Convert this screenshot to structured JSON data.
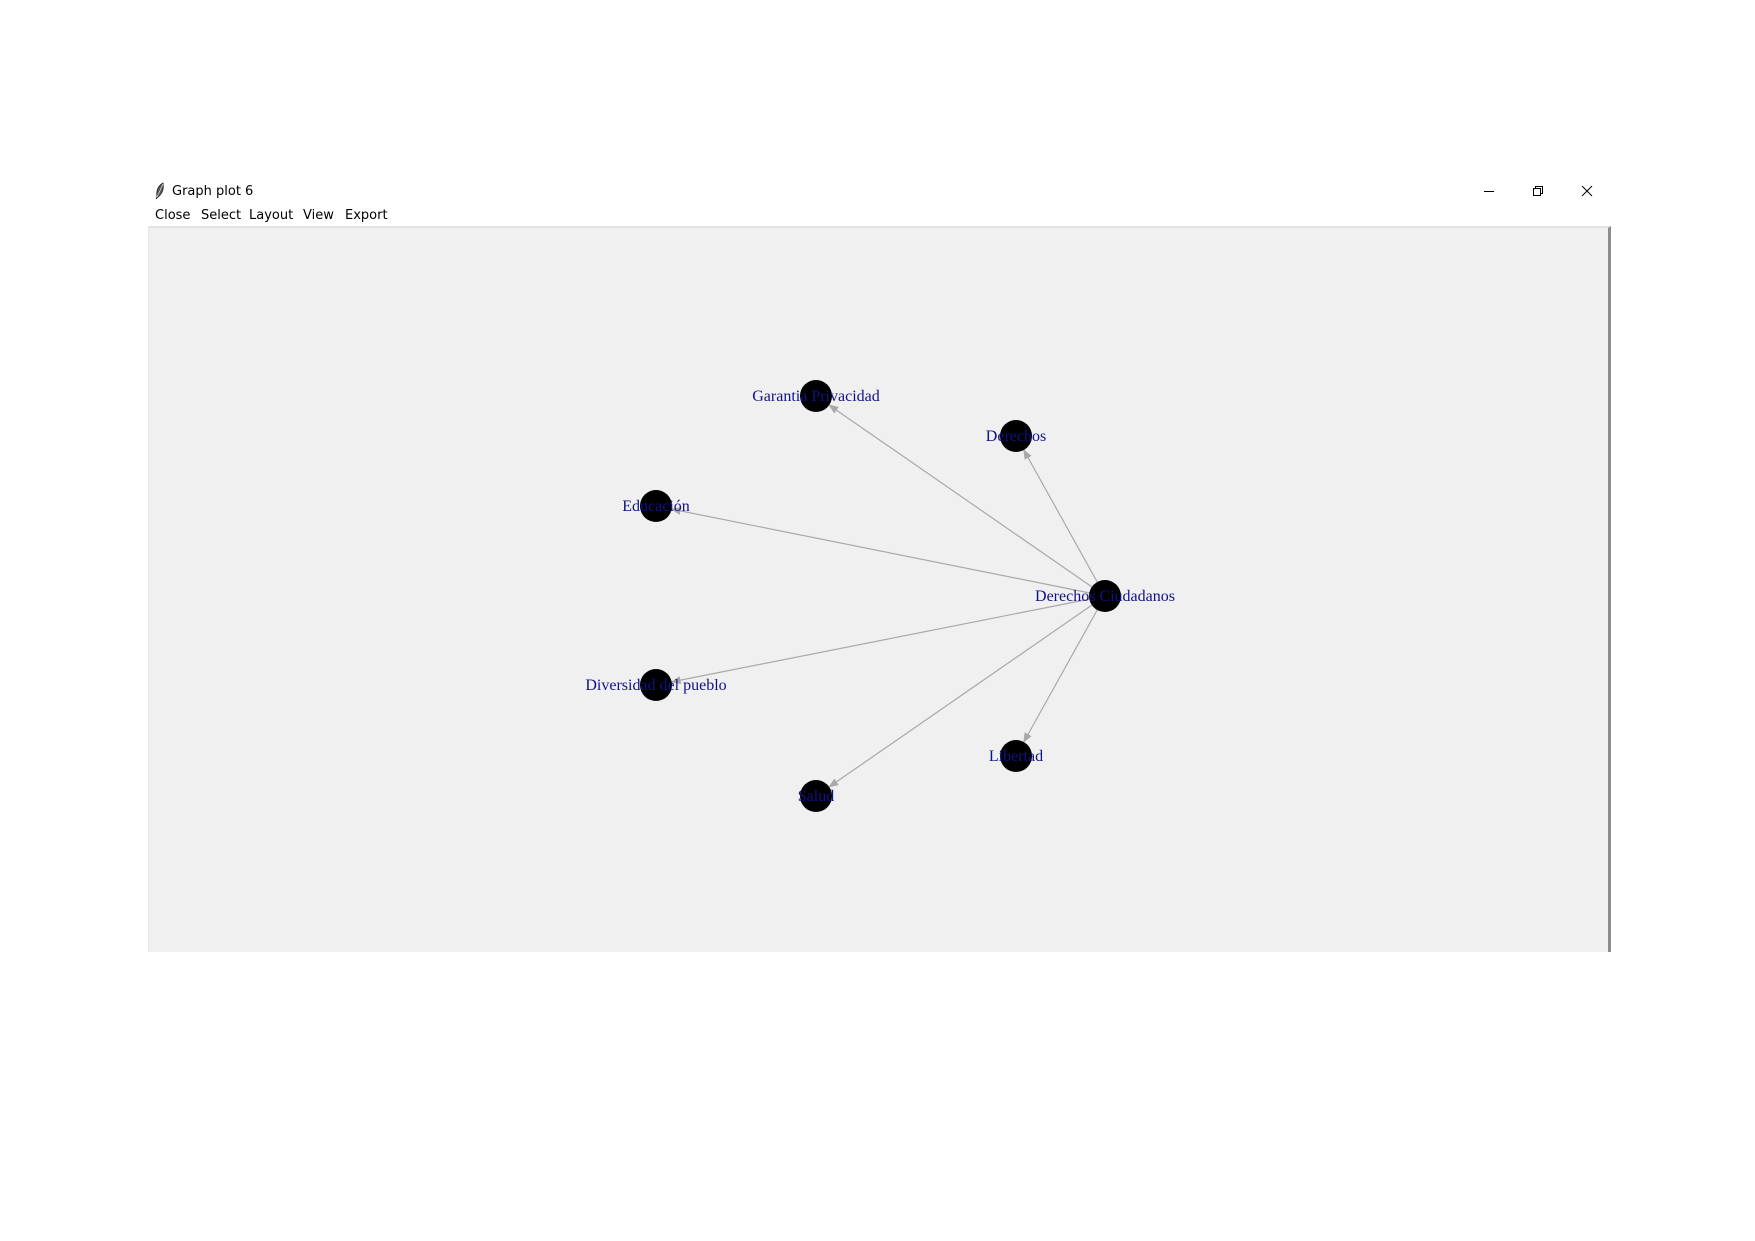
{
  "window": {
    "title": "Graph plot 6",
    "icon": "feather-icon",
    "controls": [
      "minimize-icon",
      "restore-icon",
      "close-icon"
    ]
  },
  "menu": [
    "Close",
    "Select",
    "Layout",
    "View",
    "Export"
  ],
  "graph": {
    "nodes": [
      {
        "id": "derechos-ciudadanos",
        "label": "Derechos Ciudadanos"
      },
      {
        "id": "garantia-privacidad",
        "label": "Garantia Privacidad"
      },
      {
        "id": "derechos",
        "label": "Derechos"
      },
      {
        "id": "educacion",
        "label": "Educación"
      },
      {
        "id": "diversidad",
        "label": "Diversidad del pueblo"
      },
      {
        "id": "libertad",
        "label": "Libertad"
      },
      {
        "id": "salud",
        "label": "Salud"
      }
    ],
    "edges": [
      {
        "from": "derechos-ciudadanos",
        "to": "garantia-privacidad"
      },
      {
        "from": "derechos-ciudadanos",
        "to": "derechos"
      },
      {
        "from": "derechos-ciudadanos",
        "to": "educacion"
      },
      {
        "from": "derechos-ciudadanos",
        "to": "diversidad"
      },
      {
        "from": "derechos-ciudadanos",
        "to": "libertad"
      },
      {
        "from": "derechos-ciudadanos",
        "to": "salud"
      }
    ],
    "colors": {
      "node": "#000000",
      "edge": "#a9a9a9",
      "label": "#111188",
      "canvas": "#f0f0f0"
    }
  }
}
